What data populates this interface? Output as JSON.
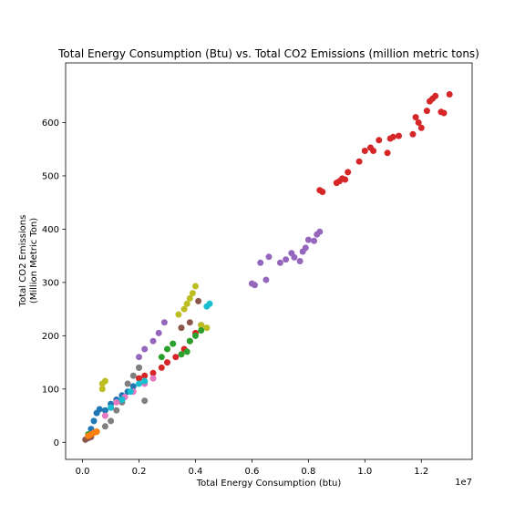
{
  "chart_data": {
    "type": "scatter",
    "title": "Total Energy Consumption (Btu) vs. Total CO2 Emissions (million metric tons)",
    "xlabel": "Total Energy Consumption (btu)",
    "ylabel_line1": "Total CO2 Emissions",
    "ylabel_line2": "(Million Metric Ton)",
    "x_offset_label": "1e7",
    "xlim": [
      -0.06,
      1.38
    ],
    "ylim": [
      -32,
      712
    ],
    "x_ticks": [
      0.0,
      0.2,
      0.4,
      0.6,
      0.8,
      1.0,
      1.2
    ],
    "x_tick_labels": [
      "0.0",
      "0.2",
      "0.4",
      "0.6",
      "0.8",
      "1.0",
      "1.2"
    ],
    "y_ticks": [
      0,
      100,
      200,
      300,
      400,
      500,
      600
    ],
    "y_tick_labels": [
      "0",
      "100",
      "200",
      "300",
      "400",
      "500",
      "600"
    ],
    "legend": "none",
    "grid": false,
    "series": [
      {
        "color": "#d62728",
        "x": [
          0.2,
          0.22,
          0.25,
          0.28,
          0.3,
          0.33,
          0.36,
          0.38,
          0.4,
          0.42,
          0.84,
          0.85,
          0.9,
          0.91,
          0.92,
          0.93,
          0.94,
          0.98,
          1.0,
          1.02,
          1.03,
          1.05,
          1.08,
          1.09,
          1.1,
          1.12,
          1.17,
          1.18,
          1.19,
          1.2,
          1.22,
          1.23,
          1.24,
          1.25,
          1.27,
          1.28,
          1.3
        ],
        "y": [
          120,
          125,
          130,
          140,
          150,
          160,
          175,
          190,
          205,
          220,
          473,
          470,
          487,
          490,
          495,
          493,
          507,
          527,
          547,
          553,
          547,
          567,
          543,
          570,
          573,
          575,
          578,
          610,
          600,
          590,
          622,
          640,
          645,
          650,
          620,
          618,
          653
        ]
      },
      {
        "color": "#9467bd",
        "x": [
          0.2,
          0.22,
          0.25,
          0.27,
          0.29,
          0.6,
          0.61,
          0.63,
          0.65,
          0.66,
          0.7,
          0.72,
          0.74,
          0.75,
          0.77,
          0.78,
          0.79,
          0.8,
          0.82,
          0.83,
          0.84
        ],
        "y": [
          160,
          175,
          190,
          205,
          225,
          298,
          295,
          337,
          305,
          348,
          337,
          343,
          355,
          347,
          340,
          358,
          365,
          380,
          378,
          390,
          395
        ]
      },
      {
        "color": "#1f77b4",
        "x": [
          0.03,
          0.04,
          0.05,
          0.06,
          0.08,
          0.1,
          0.12,
          0.14,
          0.16,
          0.18,
          0.2
        ],
        "y": [
          25,
          40,
          55,
          62,
          60,
          72,
          80,
          88,
          95,
          105,
          140
        ]
      },
      {
        "color": "#bcbd22",
        "x": [
          0.07,
          0.07,
          0.08,
          0.34,
          0.36,
          0.37,
          0.38,
          0.39,
          0.4,
          0.42,
          0.44
        ],
        "y": [
          100,
          110,
          115,
          240,
          250,
          260,
          270,
          280,
          293,
          220,
          215
        ]
      },
      {
        "color": "#2ca02c",
        "x": [
          0.02,
          0.05,
          0.28,
          0.3,
          0.32,
          0.35,
          0.37,
          0.38,
          0.4,
          0.42
        ],
        "y": [
          15,
          20,
          160,
          175,
          185,
          165,
          170,
          190,
          200,
          210
        ]
      },
      {
        "color": "#7f7f7f",
        "x": [
          0.08,
          0.1,
          0.12,
          0.14,
          0.16,
          0.18,
          0.2,
          0.22
        ],
        "y": [
          30,
          40,
          60,
          75,
          110,
          125,
          140,
          78
        ]
      },
      {
        "color": "#e377c2",
        "x": [
          0.08,
          0.1,
          0.12,
          0.15,
          0.18,
          0.22,
          0.25
        ],
        "y": [
          50,
          65,
          75,
          85,
          95,
          110,
          120
        ]
      },
      {
        "color": "#17becf",
        "x": [
          0.1,
          0.14,
          0.17,
          0.2,
          0.22,
          0.44,
          0.45
        ],
        "y": [
          65,
          80,
          95,
          110,
          115,
          255,
          260
        ]
      },
      {
        "color": "#8c564b",
        "x": [
          0.01,
          0.02,
          0.03,
          0.35,
          0.38,
          0.41
        ],
        "y": [
          5,
          8,
          10,
          215,
          225,
          265
        ]
      },
      {
        "color": "#ff7f0e",
        "x": [
          0.02,
          0.03,
          0.04,
          0.05
        ],
        "y": [
          12,
          15,
          18,
          20
        ]
      }
    ]
  }
}
